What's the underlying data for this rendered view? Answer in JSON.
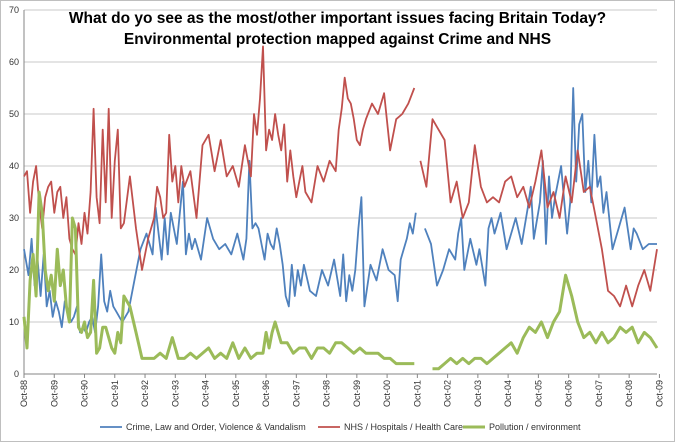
{
  "chart_data": {
    "type": "line",
    "title": "What do yo see as the most/other important issues facing Britain Today?",
    "subtitle": "Environmental protection mapped against Crime and NHS",
    "xlabel": "",
    "ylabel": "",
    "ylim": [
      0,
      70
    ],
    "yticks": [
      0,
      10,
      20,
      30,
      40,
      50,
      60,
      70
    ],
    "xlim": [
      1988.75,
      2009.67
    ],
    "xticks": [
      "Oct-88",
      "Oct-89",
      "Oct-90",
      "Oct-91",
      "Oct-92",
      "Oct-93",
      "Oct-94",
      "Oct-95",
      "Oct-96",
      "Oct-97",
      "Oct-98",
      "Oct-99",
      "Oct-00",
      "Oct-01",
      "Oct-02",
      "Oct-03",
      "Oct-04",
      "Oct-05",
      "Oct-06",
      "Oct-07",
      "Oct-08",
      "Oct-09"
    ],
    "grid": "horizontal",
    "legend_position": "bottom",
    "colors": {
      "crime": "#4f81bd",
      "nhs": "#c0504d",
      "pollution": "#9bbb59",
      "grid": "#c8c8c8"
    },
    "series": [
      {
        "name": "Crime, Law and Order, Violence & Vandalism",
        "color": "#4f81bd",
        "x": [
          1988.75,
          1988.9,
          1989.0,
          1989.1,
          1989.2,
          1989.3,
          1989.4,
          1989.5,
          1989.6,
          1989.7,
          1989.8,
          1989.9,
          1990.0,
          1990.1,
          1990.2,
          1990.3,
          1990.4,
          1990.5,
          1990.6,
          1990.7,
          1990.8,
          1990.9,
          1991.0,
          1991.1,
          1991.2,
          1991.3,
          1991.4,
          1991.5,
          1991.6,
          1991.7,
          1991.8,
          1991.9,
          1992.0,
          1992.2,
          1992.4,
          1992.6,
          1992.8,
          1993.0,
          1993.1,
          1993.2,
          1993.3,
          1993.4,
          1993.5,
          1993.6,
          1993.8,
          1994.0,
          1994.1,
          1994.2,
          1994.3,
          1994.4,
          1994.6,
          1994.8,
          1995.0,
          1995.2,
          1995.4,
          1995.6,
          1995.8,
          1996.0,
          1996.1,
          1996.2,
          1996.3,
          1996.4,
          1996.5,
          1996.6,
          1996.7,
          1996.8,
          1996.9,
          1997.0,
          1997.1,
          1997.2,
          1997.3,
          1997.4,
          1997.5,
          1997.6,
          1997.7,
          1997.8,
          1997.9,
          1998.0,
          1998.2,
          1998.4,
          1998.6,
          1998.8,
          1999.0,
          1999.2,
          1999.3,
          1999.4,
          1999.5,
          1999.6,
          1999.7,
          1999.8,
          1999.9,
          2000.0,
          2000.2,
          2000.4,
          2000.6,
          2000.8,
          2001.0,
          2001.1,
          2001.2,
          2001.3,
          2001.4,
          2001.5,
          2001.6,
          2001.7
        ],
        "y": [
          24,
          19,
          26,
          17,
          22,
          15,
          23,
          13,
          16,
          11,
          14,
          12,
          9,
          14,
          12,
          10,
          11,
          13,
          8,
          9,
          8,
          10,
          11,
          8,
          13,
          23,
          14,
          12,
          16,
          13,
          12,
          11,
          10,
          12,
          18,
          24,
          27,
          23,
          32,
          27,
          22,
          30,
          23,
          31,
          25,
          37,
          23,
          27,
          24,
          26,
          22,
          30,
          26,
          24,
          25,
          23,
          27,
          22,
          26,
          41,
          28,
          29,
          28,
          25,
          22,
          27,
          25,
          24,
          28,
          25,
          21,
          15,
          13,
          21,
          15,
          20,
          17,
          21,
          16,
          15,
          20,
          17,
          22,
          15,
          23,
          14,
          19,
          16,
          20,
          28,
          34,
          13,
          21,
          18,
          24,
          20,
          19,
          14,
          22,
          24,
          26,
          29,
          27,
          31
        ]
      },
      {
        "name": "Crime, Law and Order, Violence & Vandalism",
        "color": "#4f81bd",
        "x": [
          2002.0,
          2002.2,
          2002.4,
          2002.6,
          2002.8,
          2003.0,
          2003.1,
          2003.2,
          2003.3,
          2003.5,
          2003.7,
          2003.8,
          2004.0,
          2004.1,
          2004.2,
          2004.3,
          2004.5,
          2004.7,
          2004.9,
          2005.0,
          2005.2,
          2005.4,
          2005.5,
          2005.6,
          2005.8,
          2005.9,
          2006.0,
          2006.1,
          2006.2,
          2006.3,
          2006.5,
          2006.7,
          2006.8,
          2006.9,
          2007.0,
          2007.1,
          2007.2,
          2007.3,
          2007.4,
          2007.5,
          2007.6,
          2007.7,
          2007.8,
          2007.9,
          2008.0,
          2008.2,
          2008.4,
          2008.6,
          2008.8,
          2008.9,
          2009.0,
          2009.2,
          2009.4,
          2009.67
        ],
        "y": [
          28,
          25,
          17,
          20,
          24,
          22,
          27,
          30,
          20,
          26,
          21,
          24,
          17,
          28,
          30,
          27,
          31,
          24,
          28,
          30,
          25,
          32,
          36,
          26,
          33,
          41,
          25,
          38,
          30,
          34,
          40,
          27,
          33,
          55,
          37,
          48,
          50,
          35,
          41,
          33,
          46,
          36,
          38,
          31,
          35,
          24,
          28,
          32,
          24,
          28,
          27,
          24,
          25,
          25
        ]
      },
      {
        "name": "NHS / Hospitals / Health Care",
        "color": "#c0504d",
        "x": [
          1988.75,
          1988.85,
          1988.95,
          1989.05,
          1989.15,
          1989.25,
          1989.35,
          1989.45,
          1989.55,
          1989.65,
          1989.75,
          1989.85,
          1989.95,
          1990.05,
          1990.15,
          1990.25,
          1990.35,
          1990.45,
          1990.55,
          1990.65,
          1990.75,
          1990.85,
          1990.95,
          1991.05,
          1991.15,
          1991.25,
          1991.35,
          1991.45,
          1991.55,
          1991.65,
          1991.75,
          1991.85,
          1991.95,
          1992.05,
          1992.25,
          1992.45,
          1992.65,
          1992.85,
          1993.05,
          1993.15,
          1993.25,
          1993.35,
          1993.45,
          1993.55,
          1993.65,
          1993.75,
          1993.85,
          1993.95,
          1994.05,
          1994.25,
          1994.45,
          1994.65,
          1994.85,
          1995.05,
          1995.25,
          1995.45,
          1995.65,
          1995.85,
          1996.05,
          1996.15,
          1996.25,
          1996.35,
          1996.45,
          1996.55,
          1996.65,
          1996.75,
          1996.85,
          1996.95,
          1997.05,
          1997.15,
          1997.25,
          1997.35,
          1997.45,
          1997.55,
          1997.65,
          1997.75,
          1997.85,
          1997.95,
          1998.05,
          1998.25,
          1998.45,
          1998.65,
          1998.85,
          1999.05,
          1999.15,
          1999.25,
          1999.35,
          1999.45,
          1999.55,
          1999.65,
          1999.75,
          1999.85,
          1999.95,
          2000.05,
          2000.25,
          2000.45,
          2000.65,
          2000.85,
          2001.05,
          2001.25,
          2001.45,
          2001.65
        ],
        "y": [
          38,
          39,
          31,
          37,
          40,
          33,
          28,
          34,
          36,
          37,
          31,
          35,
          36,
          30,
          34,
          26,
          24,
          23,
          29,
          25,
          31,
          27,
          35,
          51,
          34,
          29,
          47,
          33,
          51,
          30,
          41,
          47,
          28,
          29,
          38,
          28,
          20,
          26,
          30,
          36,
          34,
          30,
          31,
          46,
          37,
          40,
          33,
          40,
          36,
          39,
          30,
          44,
          46,
          39,
          45,
          38,
          40,
          36,
          44,
          41,
          38,
          50,
          46,
          53,
          63,
          43,
          47,
          45,
          50,
          46,
          43,
          48,
          37,
          43,
          38,
          34,
          37,
          40,
          35,
          33,
          40,
          37,
          41,
          39,
          47,
          51,
          57,
          53,
          52,
          49,
          45,
          44,
          47,
          49,
          52,
          50,
          54,
          43,
          49,
          50,
          52,
          55
        ]
      },
      {
        "name": "NHS / Hospitals / Health Care",
        "color": "#c0504d",
        "x": [
          2001.85,
          2002.05,
          2002.25,
          2002.45,
          2002.65,
          2002.85,
          2003.05,
          2003.25,
          2003.45,
          2003.65,
          2003.85,
          2004.05,
          2004.25,
          2004.45,
          2004.65,
          2004.85,
          2005.05,
          2005.25,
          2005.45,
          2005.65,
          2005.85,
          2006.05,
          2006.25,
          2006.45,
          2006.65,
          2006.85,
          2007.05,
          2007.25,
          2007.45,
          2007.65,
          2007.85,
          2008.05,
          2008.25,
          2008.45,
          2008.65,
          2008.85,
          2009.05,
          2009.25,
          2009.45,
          2009.67
        ],
        "y": [
          41,
          36,
          49,
          47,
          45,
          33,
          37,
          30,
          33,
          44,
          36,
          33,
          34,
          33,
          37,
          38,
          34,
          36,
          32,
          37,
          43,
          32,
          35,
          30,
          38,
          33,
          43,
          35,
          36,
          30,
          24,
          16,
          15,
          13,
          17,
          13,
          17,
          20,
          16,
          24
        ]
      },
      {
        "name": "Pollution / environment",
        "color": "#9bbb59",
        "x": [
          1988.75,
          1988.85,
          1988.95,
          1989.05,
          1989.15,
          1989.25,
          1989.35,
          1989.45,
          1989.55,
          1989.65,
          1989.75,
          1989.85,
          1989.95,
          1990.05,
          1990.15,
          1990.25,
          1990.35,
          1990.45,
          1990.55,
          1990.65,
          1990.75,
          1990.85,
          1990.95,
          1991.05,
          1991.15,
          1991.25,
          1991.35,
          1991.45,
          1991.55,
          1991.65,
          1991.75,
          1991.85,
          1991.95,
          1992.05,
          1992.25,
          1992.45,
          1992.65,
          1992.85,
          1993.05,
          1993.25,
          1993.45,
          1993.65,
          1993.85,
          1994.05,
          1994.25,
          1994.45,
          1994.65,
          1994.85,
          1995.05,
          1995.25,
          1995.45,
          1995.65,
          1995.85,
          1996.05,
          1996.25,
          1996.45,
          1996.65,
          1996.75,
          1996.85,
          1996.95,
          1997.05,
          1997.25,
          1997.45,
          1997.65,
          1997.85,
          1998.05,
          1998.25,
          1998.45,
          1998.65,
          1998.85,
          1999.05,
          1999.25,
          1999.45,
          1999.65,
          1999.85,
          2000.05,
          2000.25,
          2000.45,
          2000.65,
          2000.85,
          2001.05,
          2001.25,
          2001.45,
          2001.65
        ],
        "y": [
          11,
          5,
          18,
          23,
          15,
          35,
          31,
          20,
          16,
          19,
          14,
          24,
          17,
          20,
          13,
          10,
          30,
          28,
          9,
          8,
          10,
          7,
          8,
          18,
          4,
          5,
          9,
          9,
          7,
          5,
          4,
          8,
          6,
          15,
          13,
          8,
          3,
          3,
          3,
          4,
          3,
          7,
          3,
          3,
          4,
          3,
          4,
          5,
          3,
          4,
          3,
          6,
          3,
          5,
          3,
          4,
          4,
          8,
          5,
          8,
          10,
          6,
          6,
          4,
          5,
          5,
          3,
          5,
          5,
          4,
          6,
          6,
          5,
          4,
          5,
          4,
          4,
          4,
          3,
          3,
          2,
          2,
          2,
          2
        ]
      },
      {
        "name": "Pollution / environment",
        "color": "#9bbb59",
        "x": [
          2002.25,
          2002.45,
          2002.65,
          2002.85,
          2003.05,
          2003.25,
          2003.45,
          2003.65,
          2003.85,
          2004.05,
          2004.25,
          2004.45,
          2004.65,
          2004.85,
          2005.05,
          2005.25,
          2005.45,
          2005.65,
          2005.85,
          2006.05,
          2006.25,
          2006.45,
          2006.65,
          2006.85,
          2007.05,
          2007.25,
          2007.45,
          2007.65,
          2007.85,
          2008.05,
          2008.25,
          2008.45,
          2008.65,
          2008.85,
          2009.05,
          2009.25,
          2009.45,
          2009.67
        ],
        "y": [
          1,
          1,
          2,
          3,
          2,
          3,
          2,
          3,
          3,
          2,
          3,
          4,
          5,
          6,
          4,
          7,
          9,
          8,
          10,
          7,
          10,
          12,
          19,
          15,
          10,
          7,
          8,
          6,
          8,
          6,
          7,
          9,
          8,
          9,
          6,
          8,
          7,
          5
        ]
      }
    ],
    "legend": [
      {
        "label": "Crime, Law and Order, Violence & Vandalism",
        "color": "#4f81bd"
      },
      {
        "label": "NHS / Hospitals / Health Care",
        "color": "#c0504d"
      },
      {
        "label": "Pollution / environment",
        "color": "#9bbb59"
      }
    ]
  }
}
